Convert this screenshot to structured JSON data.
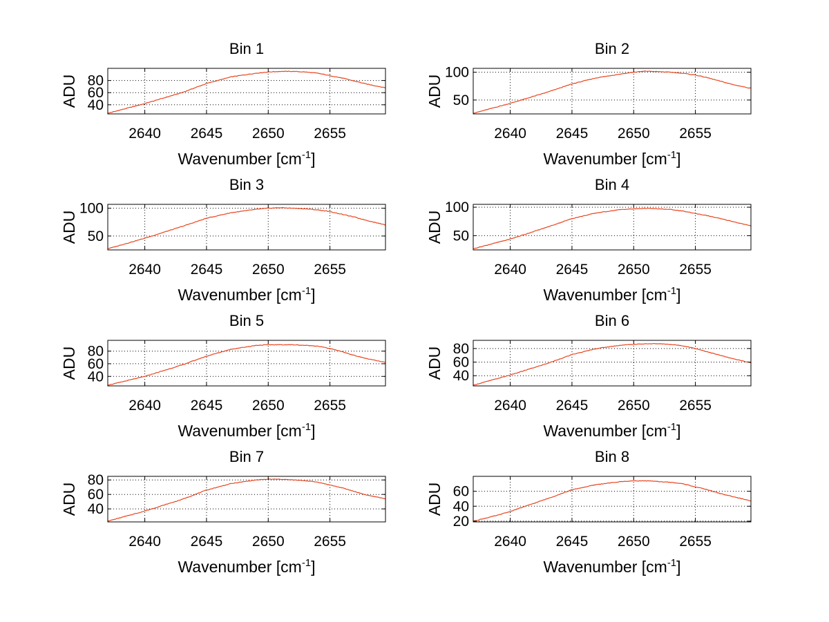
{
  "chart_data": [
    {
      "type": "line",
      "title": "Bin 1",
      "xlabel": "Wavenumber [cm",
      "xlabel_sup": "-1",
      "xlabel_end": "]",
      "ylabel": "ADU",
      "xlim": [
        2637,
        2659.5
      ],
      "ylim": [
        25,
        100
      ],
      "xticks": [
        2640,
        2645,
        2650,
        2655
      ],
      "yticks": [
        40,
        60,
        80
      ],
      "x": [
        2637,
        2640,
        2643,
        2645,
        2647,
        2649,
        2650,
        2651,
        2652,
        2653,
        2654,
        2655,
        2656,
        2657,
        2658,
        2659.5
      ],
      "y": [
        26,
        42,
        60,
        75,
        86,
        92,
        94,
        95,
        95,
        94,
        92,
        88,
        84,
        79,
        74,
        68
      ],
      "line_color": "#e8431c"
    },
    {
      "type": "line",
      "title": "Bin 2",
      "xlabel": "Wavenumber [cm",
      "xlabel_sup": "-1",
      "xlabel_end": "]",
      "ylabel": "ADU",
      "xlim": [
        2637,
        2659.5
      ],
      "ylim": [
        25,
        107
      ],
      "xticks": [
        2640,
        2645,
        2650,
        2655
      ],
      "yticks": [
        50,
        100
      ],
      "x": [
        2637,
        2640,
        2643,
        2645,
        2647,
        2649,
        2650,
        2651,
        2652,
        2653,
        2654,
        2655,
        2656,
        2657,
        2658,
        2659.5
      ],
      "y": [
        26,
        44,
        64,
        79,
        90,
        97,
        100,
        102,
        101,
        100,
        98,
        95,
        90,
        84,
        78,
        71
      ],
      "line_color": "#e8431c"
    },
    {
      "type": "line",
      "title": "Bin 3",
      "xlabel": "Wavenumber [cm",
      "xlabel_sup": "-1",
      "xlabel_end": "]",
      "ylabel": "ADU",
      "xlim": [
        2637,
        2659.5
      ],
      "ylim": [
        25,
        107
      ],
      "xticks": [
        2640,
        2645,
        2650,
        2655
      ],
      "yticks": [
        50,
        100
      ],
      "x": [
        2637,
        2640,
        2643,
        2645,
        2647,
        2649,
        2650,
        2651,
        2652,
        2653,
        2654,
        2655,
        2656,
        2657,
        2658,
        2659.5
      ],
      "y": [
        27,
        46,
        67,
        82,
        92,
        98,
        100,
        101,
        100,
        99,
        97,
        94,
        89,
        84,
        78,
        70
      ],
      "line_color": "#e8431c"
    },
    {
      "type": "line",
      "title": "Bin 4",
      "xlabel": "Wavenumber [cm",
      "xlabel_sup": "-1",
      "xlabel_end": "]",
      "ylabel": "ADU",
      "xlim": [
        2637,
        2659.5
      ],
      "ylim": [
        25,
        105
      ],
      "xticks": [
        2640,
        2645,
        2650,
        2655
      ],
      "yticks": [
        50,
        100
      ],
      "x": [
        2637,
        2640,
        2643,
        2645,
        2647,
        2649,
        2650,
        2651,
        2652,
        2653,
        2654,
        2655,
        2656,
        2657,
        2658,
        2659.5
      ],
      "y": [
        27,
        44,
        65,
        80,
        90,
        96,
        97,
        98,
        97,
        96,
        93,
        89,
        85,
        80,
        75,
        67
      ],
      "line_color": "#e8431c"
    },
    {
      "type": "line",
      "title": "Bin 5",
      "xlabel": "Wavenumber [cm",
      "xlabel_sup": "-1",
      "xlabel_end": "]",
      "ylabel": "ADU",
      "xlim": [
        2637,
        2659.5
      ],
      "ylim": [
        25,
        97
      ],
      "xticks": [
        2640,
        2645,
        2650,
        2655
      ],
      "yticks": [
        40,
        60,
        80
      ],
      "x": [
        2637,
        2640,
        2643,
        2645,
        2647,
        2649,
        2650,
        2651,
        2652,
        2653,
        2654,
        2655,
        2656,
        2657,
        2658,
        2659.5
      ],
      "y": [
        26,
        40,
        58,
        72,
        83,
        89,
        90,
        90,
        90,
        89,
        88,
        84,
        79,
        73,
        68,
        62
      ],
      "line_color": "#e8431c"
    },
    {
      "type": "line",
      "title": "Bin 6",
      "xlabel": "Wavenumber [cm",
      "xlabel_sup": "-1",
      "xlabel_end": "]",
      "ylabel": "ADU",
      "xlim": [
        2637,
        2659.5
      ],
      "ylim": [
        25,
        92
      ],
      "xticks": [
        2640,
        2645,
        2650,
        2655
      ],
      "yticks": [
        40,
        60,
        80
      ],
      "x": [
        2637,
        2640,
        2643,
        2645,
        2647,
        2649,
        2650,
        2651,
        2652,
        2653,
        2654,
        2655,
        2656,
        2657,
        2658,
        2659.5
      ],
      "y": [
        26,
        41,
        58,
        71,
        80,
        85,
        86,
        87,
        87,
        86,
        84,
        80,
        75,
        70,
        65,
        59
      ],
      "line_color": "#e8431c"
    },
    {
      "type": "line",
      "title": "Bin 7",
      "xlabel": "Wavenumber [cm",
      "xlabel_sup": "-1",
      "xlabel_end": "]",
      "ylabel": "ADU",
      "xlim": [
        2637,
        2659.5
      ],
      "ylim": [
        22,
        85
      ],
      "xticks": [
        2640,
        2645,
        2650,
        2655
      ],
      "yticks": [
        40,
        60,
        80
      ],
      "x": [
        2637,
        2640,
        2643,
        2645,
        2647,
        2649,
        2650,
        2651,
        2652,
        2653,
        2654,
        2655,
        2656,
        2657,
        2658,
        2659.5
      ],
      "y": [
        23,
        37,
        53,
        66,
        75,
        80,
        81,
        81,
        80,
        79,
        77,
        73,
        69,
        64,
        59,
        54
      ],
      "line_color": "#e8431c"
    },
    {
      "type": "line",
      "title": "Bin 8",
      "xlabel": "Wavenumber [cm",
      "xlabel_sup": "-1",
      "xlabel_end": "]",
      "ylabel": "ADU",
      "xlim": [
        2637,
        2659.5
      ],
      "ylim": [
        19,
        80
      ],
      "xticks": [
        2640,
        2645,
        2650,
        2655
      ],
      "yticks": [
        20,
        40,
        60
      ],
      "x": [
        2637,
        2639,
        2640,
        2643,
        2645,
        2647,
        2649,
        2650,
        2651,
        2652,
        2653,
        2654,
        2655,
        2656,
        2657,
        2658,
        2659.5
      ],
      "y": [
        20,
        28,
        33,
        50,
        62,
        69,
        73,
        74,
        74,
        73,
        72,
        70,
        66,
        62,
        57,
        53,
        47
      ],
      "line_color": "#e8431c"
    }
  ]
}
